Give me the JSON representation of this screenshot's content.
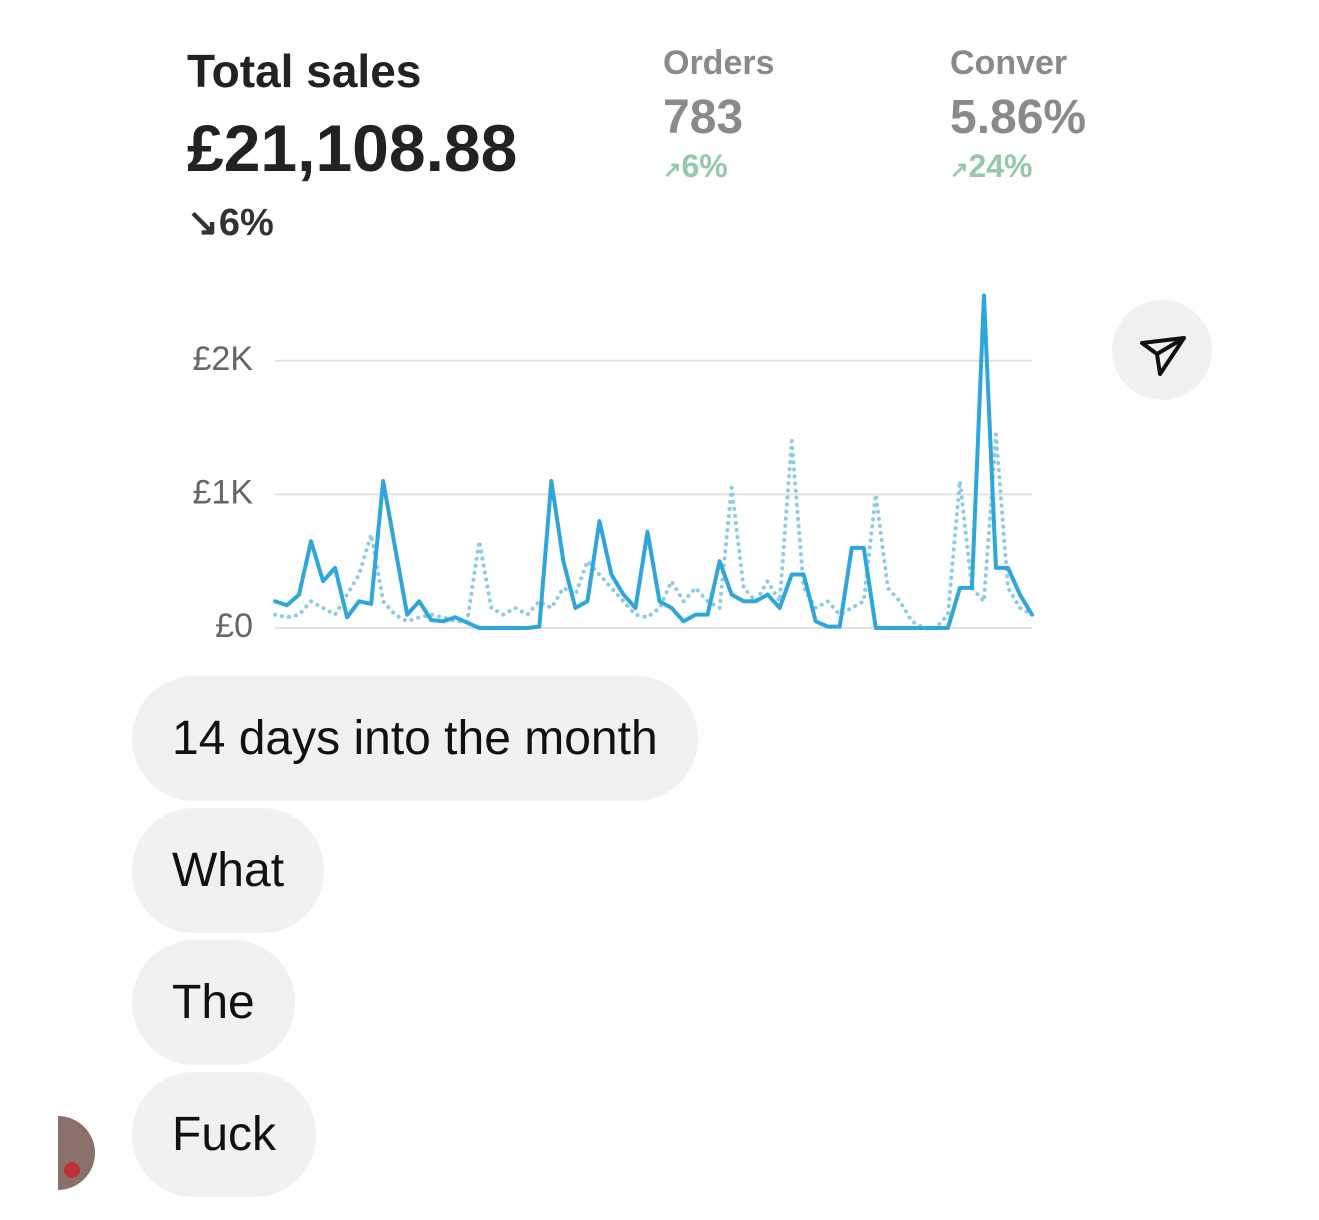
{
  "dashboard": {
    "title": "Total sales",
    "total": "£21,108.88",
    "total_change": "6%",
    "metrics": [
      {
        "label": "Orders",
        "value": "783",
        "change": "6%"
      },
      {
        "label": "Conver",
        "value": "5.86%",
        "change": "24%"
      }
    ]
  },
  "chart_data": {
    "type": "line",
    "categories": [
      null,
      null,
      null,
      null,
      null,
      null,
      null,
      null,
      null,
      null,
      null,
      null,
      null,
      null,
      null,
      null,
      null,
      null,
      null,
      null,
      null,
      null,
      null,
      null,
      null,
      null,
      null,
      null,
      null,
      null,
      null,
      null,
      null,
      null,
      null,
      null,
      null,
      null,
      null,
      null,
      null,
      null,
      null,
      null,
      null,
      null,
      null,
      null,
      null,
      null,
      null,
      null,
      null,
      null,
      null,
      null,
      null,
      null,
      null,
      null,
      null,
      null,
      null,
      null
    ],
    "series": [
      {
        "color": "#2ea6dc",
        "style": "solid",
        "values": [
          200,
          170,
          250,
          650,
          350,
          450,
          80,
          200,
          180,
          1100,
          600,
          100,
          200,
          60,
          50,
          80,
          40,
          0,
          0,
          0,
          0,
          0,
          10,
          1100,
          500,
          150,
          200,
          800,
          400,
          250,
          150,
          720,
          200,
          150,
          50,
          100,
          100,
          500,
          250,
          200,
          200,
          250,
          150,
          400,
          400,
          50,
          10,
          10,
          600,
          600,
          0,
          0,
          0,
          0,
          0,
          0,
          0,
          300,
          300,
          2490,
          450,
          450,
          250,
          100
        ]
      },
      {
        "color": "#8ccbe6",
        "style": "dotted",
        "values": [
          100,
          80,
          100,
          200,
          150,
          100,
          250,
          400,
          700,
          200,
          100,
          50,
          80,
          100,
          80,
          50,
          50,
          650,
          150,
          100,
          150,
          100,
          200,
          150,
          300,
          250,
          500,
          400,
          300,
          200,
          100,
          80,
          150,
          350,
          200,
          300,
          200,
          150,
          1050,
          300,
          200,
          350,
          200,
          1400,
          300,
          150,
          200,
          100,
          150,
          200,
          1000,
          300,
          200,
          50,
          0,
          0,
          100,
          1100,
          300,
          200,
          1450,
          300,
          150,
          100
        ]
      }
    ],
    "ylim": [
      0,
      2500
    ],
    "yticks": [
      {
        "value": 0,
        "label": "£0"
      },
      {
        "value": 1000,
        "label": "£1K"
      },
      {
        "value": 2000,
        "label": "£2K"
      }
    ],
    "grid": true
  },
  "messages": [
    "14 days into the month",
    "What",
    "The",
    "Fuck"
  ]
}
